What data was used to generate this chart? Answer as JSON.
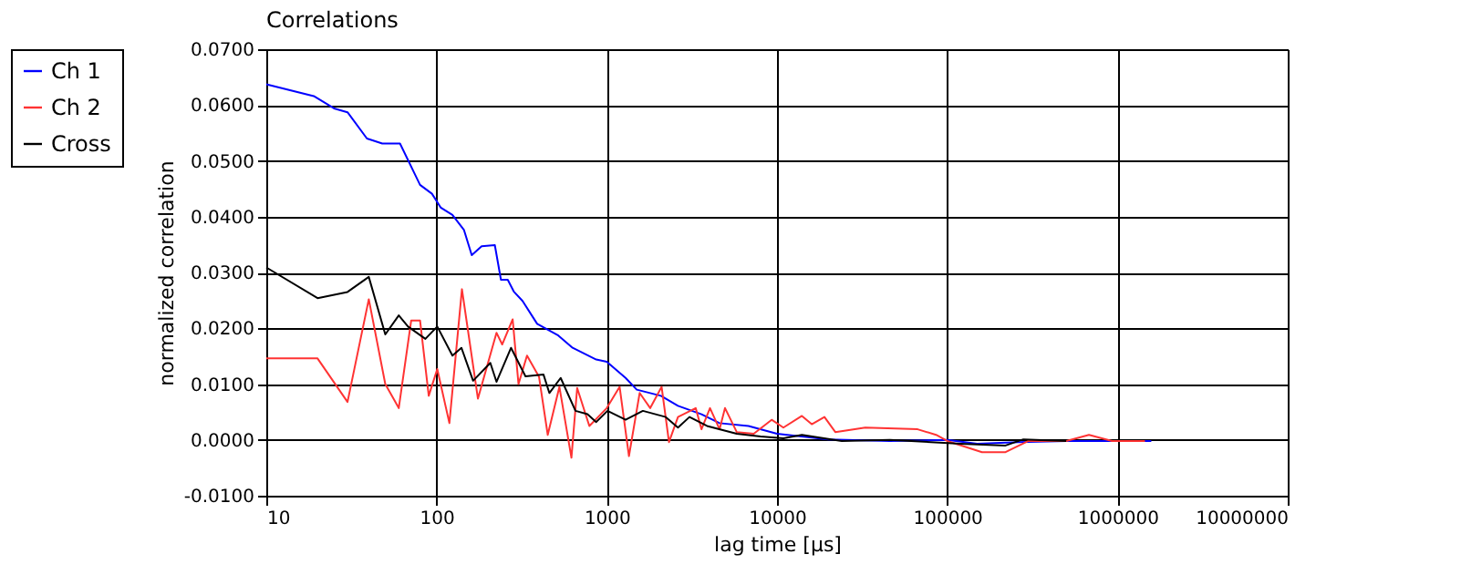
{
  "chart_data": {
    "type": "line",
    "title": "Correlations",
    "xlabel": "lag time [µs]",
    "ylabel": "normalized correlation",
    "log": "x",
    "grid": true,
    "legend": "top left",
    "line_style": "solid",
    "marker": "none",
    "xlim": [
      10,
      10000000
    ],
    "xticks": [
      10,
      100,
      1000,
      10000,
      100000,
      1000000,
      10000000
    ],
    "ylim": [
      -0.01,
      0.07
    ],
    "yticks": [
      {
        "value": -0.01,
        "label": "-0.0100"
      },
      {
        "value": 0,
        "label": "0.0000"
      },
      {
        "value": 0.01,
        "label": "0.0100"
      },
      {
        "value": 0.02,
        "label": "0.0200"
      },
      {
        "value": 0.03,
        "label": "0.0300"
      },
      {
        "value": 0.04,
        "label": "0.0400"
      },
      {
        "value": 0.05,
        "label": "0.0500"
      },
      {
        "value": 0.06,
        "label": "0.0600"
      },
      {
        "value": 0.07,
        "label": "0.0700"
      }
    ],
    "series": [
      {
        "name": "Ch 1",
        "color": "#0000ff",
        "x": [
          10,
          19,
          25,
          30,
          39,
          48,
          61,
          80,
          94,
          106,
          124,
          145,
          161,
          184,
          220,
          239,
          262,
          284,
          320,
          390,
          519,
          630,
          867,
          1000,
          1290,
          1500,
          2080,
          2620,
          3600,
          4600,
          6800,
          10000,
          20000,
          46000,
          100000,
          150000,
          260000,
          500000,
          1580000
        ],
        "values": [
          0.0637,
          0.0616,
          0.0594,
          0.0587,
          0.054,
          0.0531,
          0.0531,
          0.0457,
          0.0441,
          0.0416,
          0.0403,
          0.0376,
          0.0331,
          0.0347,
          0.0349,
          0.0287,
          0.0287,
          0.0266,
          0.0249,
          0.0208,
          0.0187,
          0.0165,
          0.0144,
          0.014,
          0.0111,
          0.009,
          0.0079,
          0.0061,
          0.0046,
          0.003,
          0.0025,
          0.0011,
          0.0001,
          -0.0002,
          0,
          -0.0007,
          -0.0004,
          -0.0002,
          -0.0002
        ]
      },
      {
        "name": "Ch 2",
        "color": "#ff3333",
        "x": [
          10,
          20,
          30,
          40,
          50,
          60,
          71,
          80,
          90,
          101,
          119,
          141,
          175,
          225,
          243,
          280,
          303,
          340,
          400,
          450,
          527,
          620,
          670,
          790,
          1000,
          1190,
          1350,
          1560,
          1800,
          2100,
          2320,
          2620,
          3330,
          3600,
          4040,
          4600,
          4950,
          5800,
          7300,
          9300,
          10900,
          14000,
          16000,
          19000,
          22000,
          33000,
          67000,
          86000,
          100000,
          160000,
          220000,
          300000,
          500000,
          680000,
          930000,
          1450000
        ],
        "values": [
          0.0146,
          0.0146,
          0.0068,
          0.0252,
          0.01,
          0.0057,
          0.0214,
          0.0214,
          0.0079,
          0.0127,
          0.003,
          0.027,
          0.0074,
          0.0192,
          0.0171,
          0.0216,
          0.01,
          0.0151,
          0.0113,
          0.0009,
          0.0095,
          -0.0032,
          0.0093,
          0.0025,
          0.0057,
          0.0095,
          -0.0029,
          0.0084,
          0.0057,
          0.0095,
          -0.0004,
          0.0041,
          0.0057,
          0.0019,
          0.0057,
          0.0019,
          0.0057,
          0.0014,
          0.0011,
          0.0036,
          0.0022,
          0.0043,
          0.0028,
          0.0041,
          0.0014,
          0.0022,
          0.0019,
          0.0009,
          -0.0002,
          -0.0022,
          -0.0022,
          -0.0002,
          -0.0002,
          0.0009,
          -0.0002,
          -0.0002
        ]
      },
      {
        "name": "Cross",
        "color": "#000000",
        "x": [
          10,
          20,
          30,
          40,
          50,
          60,
          68,
          86,
          101,
          124,
          140,
          164,
          207,
          225,
          274,
          333,
          425,
          460,
          536,
          655,
          770,
          867,
          1010,
          1290,
          1630,
          2220,
          2620,
          3060,
          3880,
          5800,
          8000,
          10900,
          14000,
          24000,
          46000,
          120000,
          220000,
          280000,
          500000
        ],
        "values": [
          0.0309,
          0.0254,
          0.0265,
          0.0292,
          0.0189,
          0.0223,
          0.0203,
          0.0181,
          0.0203,
          0.0151,
          0.0165,
          0.0106,
          0.0138,
          0.0104,
          0.0165,
          0.0114,
          0.0117,
          0.0084,
          0.0111,
          0.0052,
          0.0046,
          0.0032,
          0.0052,
          0.0036,
          0.0052,
          0.0041,
          0.0022,
          0.0041,
          0.0025,
          0.0011,
          0.0006,
          0.0003,
          0.0009,
          -0.0002,
          0,
          -0.0007,
          -0.001,
          0.0001,
          -0.0002
        ]
      }
    ]
  }
}
